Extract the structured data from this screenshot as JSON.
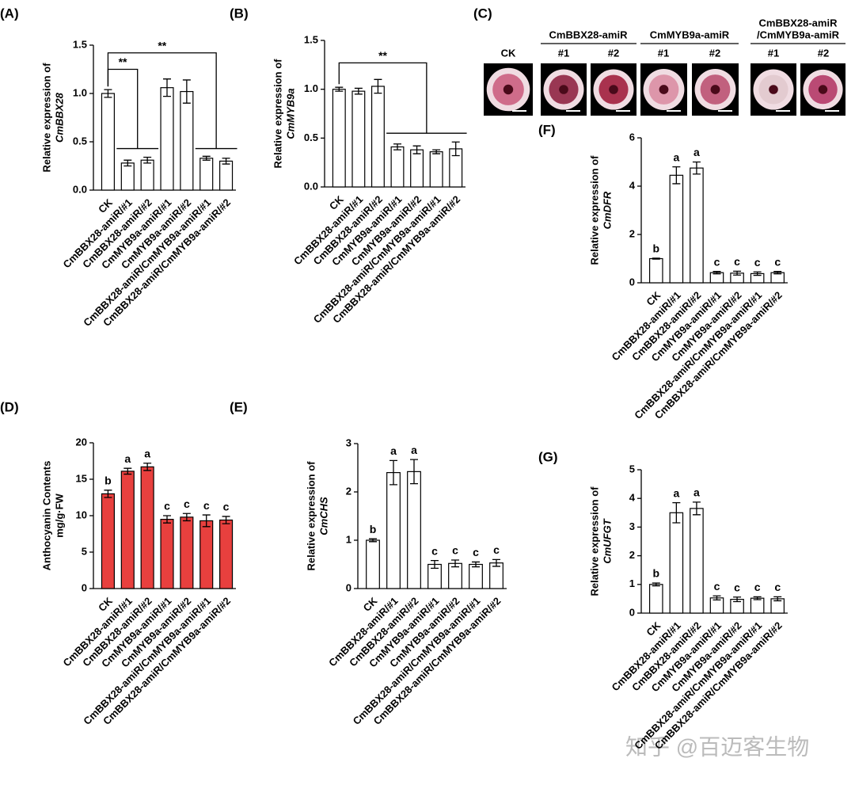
{
  "chart_data": [
    {
      "type": "bar",
      "panel": "(A)",
      "ylabel": [
        "Relative expression of",
        "CmBBX28"
      ],
      "ylabel_italic": true,
      "color": "#ffffff",
      "categories": [
        "CK",
        "CmBBX28-amiR/#1",
        "CmBBX28-amiR/#2",
        "CmMYB9a-amiR/#1",
        "CmMYB9a-amiR/#2",
        "CmBBX28-amiR/CmMYB9a-amiR/#1",
        "CmBBX28-amiR/CmMYB9a-amiR/#2"
      ],
      "values": [
        1.0,
        0.28,
        0.31,
        1.06,
        1.02,
        0.33,
        0.3
      ],
      "errors": [
        0.04,
        0.03,
        0.03,
        0.09,
        0.12,
        0.02,
        0.03
      ],
      "ylim": [
        0,
        1.5
      ],
      "yticks": [
        {
          "value": 0,
          "label": "0.0"
        },
        0.5,
        {
          "value": 1,
          "label": "1.0"
        },
        1.5
      ],
      "annotations": [
        {
          "text": "**",
          "y": 1.25,
          "base": 0.43
        },
        {
          "text": "**",
          "y": 1.42,
          "base": 0.43
        }
      ]
    },
    {
      "type": "bar",
      "panel": "(B)",
      "ylabel": [
        "Relative expression of",
        "CmMYB9a"
      ],
      "ylabel_italic": true,
      "color": "#ffffff",
      "categories": [
        "CK",
        "CmBBX28-amiR/#1",
        "CmBBX28-amiR/#2",
        "CmMYB9a-amiR/#1",
        "CmMYB9a-amiR/#2",
        "CmBBX28-amiR/CmMYB9a-amiR/#1",
        "CmBBX28-amiR/CmMYB9a-amiR/#2"
      ],
      "values": [
        1.0,
        0.98,
        1.03,
        0.41,
        0.38,
        0.36,
        0.39
      ],
      "errors": [
        0.02,
        0.03,
        0.07,
        0.03,
        0.04,
        0.02,
        0.07
      ],
      "ylim": [
        0,
        1.5
      ],
      "yticks": [
        {
          "value": 0,
          "label": "0.0"
        },
        0.5,
        {
          "value": 1,
          "label": "1.0"
        },
        1.5
      ],
      "annotations": [
        {
          "text": "**",
          "y": 1.27,
          "base": 0.55
        }
      ]
    },
    {
      "type": "bar",
      "panel": "(D)",
      "ylabel": [
        "Anthocyanin Contents",
        "mg/g·FW"
      ],
      "ylabel_italic": false,
      "color": "#e8403e",
      "categories": [
        "CK",
        "CmBBX28-amiR/#1",
        "CmBBX28-amiR/#2",
        "CmMYB9a-amiR/#1",
        "CmMYB9a-amiR/#2",
        "CmBBX28-amiR/CmMYB9a-amiR/#1",
        "CmBBX28-amiR/CmMYB9a-amiR/#2"
      ],
      "values": [
        13.0,
        16.1,
        16.7,
        9.5,
        9.8,
        9.3,
        9.4
      ],
      "errors": [
        0.5,
        0.4,
        0.5,
        0.5,
        0.5,
        0.8,
        0.5
      ],
      "letters": [
        "b",
        "a",
        "a",
        "c",
        "c",
        "c",
        "c"
      ],
      "ylim": [
        0,
        20
      ],
      "yticks": [
        0,
        5,
        10,
        15,
        20
      ]
    },
    {
      "type": "bar",
      "panel": "(E)",
      "ylabel": [
        "Relative expression of",
        "CmCHS"
      ],
      "ylabel_italic": true,
      "color": "#ffffff",
      "categories": [
        "CK",
        "CmBBX28-amiR/#1",
        "CmBBX28-amiR/#2",
        "CmMYB9a-amiR/#1",
        "CmMYB9a-amiR/#2",
        "CmBBX28-amiR/CmMYB9a-amiR/#1",
        "CmBBX28-amiR/CmMYB9a-amiR/#2"
      ],
      "values": [
        1.0,
        2.4,
        2.42,
        0.5,
        0.52,
        0.5,
        0.53
      ],
      "errors": [
        0.03,
        0.25,
        0.25,
        0.08,
        0.07,
        0.05,
        0.07
      ],
      "letters": [
        "b",
        "a",
        "a",
        "c",
        "c",
        "c",
        "c"
      ],
      "ylim": [
        0,
        3
      ],
      "yticks": [
        0,
        1,
        2,
        3
      ]
    },
    {
      "type": "bar",
      "panel": "(F)",
      "ylabel": [
        "Relative expression of",
        "CmDFR"
      ],
      "ylabel_italic": true,
      "color": "#ffffff",
      "categories": [
        "CK",
        "CmBBX28-amiR/#1",
        "CmBBX28-amiR/#2",
        "CmMYB9a-amiR/#1",
        "CmMYB9a-amiR/#2",
        "CmBBX28-amiR/CmMYB9a-amiR/#1",
        "CmBBX28-amiR/CmMYB9a-amiR/#2"
      ],
      "values": [
        1.0,
        4.45,
        4.75,
        0.42,
        0.4,
        0.38,
        0.42
      ],
      "errors": [
        0.02,
        0.35,
        0.25,
        0.05,
        0.08,
        0.07,
        0.05
      ],
      "letters": [
        "b",
        "a",
        "a",
        "c",
        "c",
        "c",
        "c"
      ],
      "ylim": [
        0,
        6
      ],
      "yticks": [
        0,
        2,
        4,
        6
      ]
    },
    {
      "type": "bar",
      "panel": "(G)",
      "ylabel": [
        "Relative expression of",
        "CmUFGT"
      ],
      "ylabel_italic": true,
      "color": "#ffffff",
      "categories": [
        "CK",
        "CmBBX28-amiR/#1",
        "CmBBX28-amiR/#2",
        "CmMYB9a-amiR/#1",
        "CmMYB9a-amiR/#2",
        "CmBBX28-amiR/CmMYB9a-amiR/#1",
        "CmBBX28-amiR/CmMYB9a-amiR/#2"
      ],
      "values": [
        1.0,
        3.5,
        3.65,
        0.53,
        0.48,
        0.52,
        0.5
      ],
      "errors": [
        0.05,
        0.35,
        0.22,
        0.07,
        0.08,
        0.05,
        0.07
      ],
      "letters": [
        "b",
        "a",
        "a",
        "c",
        "c",
        "c",
        "c"
      ],
      "ylim": [
        0,
        5
      ],
      "yticks": [
        0,
        1,
        2,
        3,
        4,
        5
      ]
    }
  ],
  "photos": {
    "panel": "(C)",
    "ck": "CK",
    "groups": [
      {
        "name": [
          "CmBBX28-amiR"
        ],
        "lines": [
          "#1",
          "#2"
        ]
      },
      {
        "name": [
          "CmMYB9a-amiR"
        ],
        "lines": [
          "#1",
          "#2"
        ]
      },
      {
        "name": [
          "CmBBX28-amiR",
          "/CmMYB9a-amiR"
        ],
        "lines": [
          "#1",
          "#2"
        ]
      }
    ]
  },
  "watermark": "知乎 @百迈客生物"
}
